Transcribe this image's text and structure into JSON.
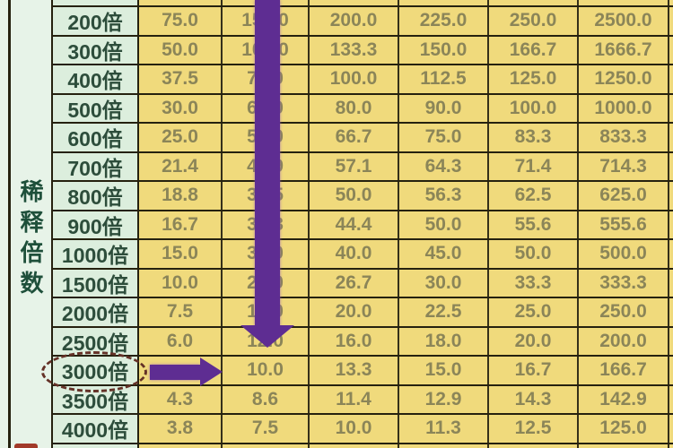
{
  "left_header": {
    "text": "稀释倍数"
  },
  "table": {
    "rows": [
      {
        "label": "200倍",
        "values": [
          "75.0",
          "150.0",
          "200.0",
          "225.0",
          "250.0",
          "2500.0"
        ]
      },
      {
        "label": "300倍",
        "values": [
          "50.0",
          "100.0",
          "133.3",
          "150.0",
          "166.7",
          "1666.7"
        ]
      },
      {
        "label": "400倍",
        "values": [
          "37.5",
          "75.0",
          "100.0",
          "112.5",
          "125.0",
          "1250.0"
        ]
      },
      {
        "label": "500倍",
        "values": [
          "30.0",
          "60.0",
          "80.0",
          "90.0",
          "100.0",
          "1000.0"
        ]
      },
      {
        "label": "600倍",
        "values": [
          "25.0",
          "50.0",
          "66.7",
          "75.0",
          "83.3",
          "833.3"
        ]
      },
      {
        "label": "700倍",
        "values": [
          "21.4",
          "42.9",
          "57.1",
          "64.3",
          "71.4",
          "714.3"
        ]
      },
      {
        "label": "800倍",
        "values": [
          "18.8",
          "37.5",
          "50.0",
          "56.3",
          "62.5",
          "625.0"
        ]
      },
      {
        "label": "900倍",
        "values": [
          "16.7",
          "33.3",
          "44.4",
          "50.0",
          "55.6",
          "555.6"
        ]
      },
      {
        "label": "1000倍",
        "values": [
          "15.0",
          "30.0",
          "40.0",
          "45.0",
          "50.0",
          "500.0"
        ]
      },
      {
        "label": "1500倍",
        "values": [
          "10.0",
          "20.0",
          "26.7",
          "30.0",
          "33.3",
          "333.3"
        ]
      },
      {
        "label": "2000倍",
        "values": [
          "7.5",
          "15.0",
          "20.0",
          "22.5",
          "25.0",
          "250.0"
        ]
      },
      {
        "label": "2500倍",
        "values": [
          "6.0",
          "12.0",
          "16.0",
          "18.0",
          "20.0",
          "200.0"
        ]
      },
      {
        "label": "3000倍",
        "values": [
          "",
          "10.0",
          "13.3",
          "15.0",
          "16.7",
          "166.7"
        ]
      },
      {
        "label": "3500倍",
        "values": [
          "4.3",
          "8.6",
          "11.4",
          "12.9",
          "14.3",
          "142.9"
        ]
      },
      {
        "label": "4000倍",
        "values": [
          "3.8",
          "7.5",
          "10.0",
          "11.3",
          "12.5",
          "125.0"
        ]
      }
    ]
  },
  "annotations": {
    "circled_label": "3000倍",
    "down_arrow_over_column": 2,
    "right_arrow_row_label": "3000倍"
  },
  "colors": {
    "cell_yellow": "#f0da7c",
    "cell_green": "#dceedd",
    "left_strip": "#e7f3e8",
    "border_h": "#25210f",
    "border_v": "#35301a",
    "purple": "#5e2d92",
    "label_text": "#2d4d3b",
    "value_text": "#8b8558",
    "header_text": "#1e4f3a",
    "ellipse": "#643127",
    "red_mark": "#a23a2a"
  }
}
